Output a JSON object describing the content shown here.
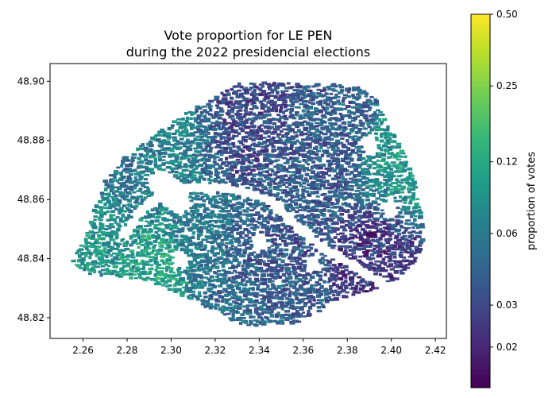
{
  "chart_data": {
    "type": "scatter",
    "title_line1": "Vote proportion for LE PEN",
    "title_line2": "during the 2022 presidencial elections",
    "xlabel": "",
    "ylabel": "",
    "xlim": [
      2.245,
      2.425
    ],
    "ylim": [
      48.813,
      48.906
    ],
    "x_ticks": [
      "2.26",
      "2.28",
      "2.30",
      "2.32",
      "2.34",
      "2.36",
      "2.38",
      "2.40",
      "2.42"
    ],
    "y_ticks": [
      "48.82",
      "48.84",
      "48.86",
      "48.88",
      "48.90"
    ],
    "grid": false,
    "colorbar": {
      "label": "proportion of votes",
      "scale": "log",
      "colormap": "viridis",
      "range": [
        0.0135,
        0.5
      ],
      "tick_labels": [
        "0.02",
        "0.03",
        "0.06",
        "0.12",
        "0.25",
        "0.50"
      ]
    },
    "outline": [
      [
        2.255,
        48.84
      ],
      [
        2.262,
        48.848
      ],
      [
        2.265,
        48.856
      ],
      [
        2.27,
        48.866
      ],
      [
        2.278,
        48.874
      ],
      [
        2.29,
        48.88
      ],
      [
        2.3,
        48.886
      ],
      [
        2.315,
        48.893
      ],
      [
        2.33,
        48.899
      ],
      [
        2.345,
        48.9
      ],
      [
        2.36,
        48.899
      ],
      [
        2.375,
        48.899
      ],
      [
        2.388,
        48.898
      ],
      [
        2.395,
        48.892
      ],
      [
        2.398,
        48.885
      ],
      [
        2.405,
        48.878
      ],
      [
        2.41,
        48.868
      ],
      [
        2.413,
        48.858
      ],
      [
        2.415,
        48.848
      ],
      [
        2.412,
        48.84
      ],
      [
        2.405,
        48.834
      ],
      [
        2.395,
        48.83
      ],
      [
        2.385,
        48.828
      ],
      [
        2.375,
        48.826
      ],
      [
        2.365,
        48.82
      ],
      [
        2.355,
        48.818
      ],
      [
        2.345,
        48.818
      ],
      [
        2.335,
        48.817
      ],
      [
        2.325,
        48.82
      ],
      [
        2.31,
        48.826
      ],
      [
        2.298,
        48.83
      ],
      [
        2.285,
        48.833
      ],
      [
        2.272,
        48.834
      ],
      [
        2.262,
        48.835
      ],
      [
        2.256,
        48.838
      ]
    ],
    "holes": [
      [
        [
          2.288,
          48.868
        ],
        [
          2.296,
          48.87
        ],
        [
          2.305,
          48.865
        ],
        [
          2.31,
          48.858
        ],
        [
          2.303,
          48.855
        ],
        [
          2.295,
          48.859
        ]
      ],
      [
        [
          2.336,
          48.848
        ],
        [
          2.342,
          48.849
        ],
        [
          2.345,
          48.845
        ],
        [
          2.339,
          48.843
        ]
      ],
      [
        [
          2.385,
          48.88
        ],
        [
          2.392,
          48.882
        ],
        [
          2.395,
          48.876
        ],
        [
          2.388,
          48.875
        ]
      ],
      [
        [
          2.36,
          48.84
        ],
        [
          2.366,
          48.842
        ],
        [
          2.369,
          48.836
        ],
        [
          2.362,
          48.835
        ]
      ],
      [
        [
          2.3,
          48.842
        ],
        [
          2.306,
          48.843
        ],
        [
          2.308,
          48.838
        ],
        [
          2.302,
          48.837
        ]
      ],
      [
        [
          2.395,
          48.858
        ],
        [
          2.401,
          48.861
        ],
        [
          2.404,
          48.855
        ],
        [
          2.398,
          48.853
        ]
      ]
    ],
    "river": [
      [
        2.279,
        48.848
      ],
      [
        2.285,
        48.855
      ],
      [
        2.295,
        48.862
      ],
      [
        2.31,
        48.864
      ],
      [
        2.325,
        48.864
      ],
      [
        2.336,
        48.862
      ],
      [
        2.346,
        48.859
      ],
      [
        2.355,
        48.853
      ],
      [
        2.362,
        48.848
      ],
      [
        2.37,
        48.843
      ],
      [
        2.382,
        48.838
      ],
      [
        2.395,
        48.832
      ],
      [
        2.405,
        48.828
      ]
    ],
    "clusters": [
      {
        "center": [
          2.335,
          48.885
        ],
        "radius": 0.012,
        "proportion": 0.03
      },
      {
        "center": [
          2.372,
          48.882
        ],
        "radius": 0.01,
        "proportion": 0.04
      },
      {
        "center": [
          2.395,
          48.845
        ],
        "radius": 0.008,
        "proportion": 0.025
      },
      {
        "center": [
          2.34,
          48.84
        ],
        "radius": 0.01,
        "proportion": 0.035
      },
      {
        "center": [
          2.3,
          48.878
        ],
        "radius": 0.01,
        "proportion": 0.07
      },
      {
        "center": [
          2.275,
          48.845
        ],
        "radius": 0.009,
        "proportion": 0.09
      },
      {
        "center": [
          2.28,
          48.87
        ],
        "radius": 0.008,
        "proportion": 0.05
      },
      {
        "center": [
          2.33,
          48.829
        ],
        "radius": 0.01,
        "proportion": 0.05
      },
      {
        "center": [
          2.29,
          48.83
        ],
        "radius": 0.009,
        "proportion": 0.11
      },
      {
        "center": [
          2.405,
          48.87
        ],
        "radius": 0.009,
        "proportion": 0.09
      },
      {
        "center": [
          2.32,
          48.852
        ],
        "radius": 0.009,
        "proportion": 0.06
      },
      {
        "center": [
          2.355,
          48.868
        ],
        "radius": 0.009,
        "proportion": 0.04
      }
    ],
    "highlight": {
      "x": 2.391,
      "y": 48.848,
      "proportion": 0.015
    }
  }
}
